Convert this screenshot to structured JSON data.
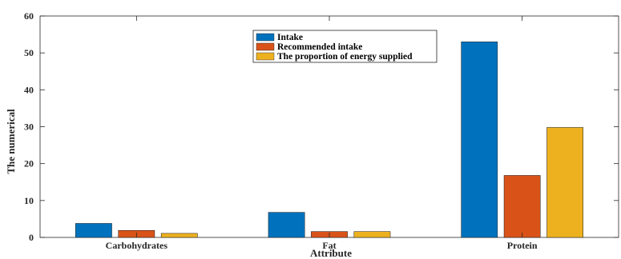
{
  "chart_data": {
    "type": "bar",
    "title": "",
    "xlabel": "Attribute",
    "ylabel": "The numerical",
    "categories": [
      "Carbohydrates",
      "Fat",
      "Protein"
    ],
    "ylim": [
      0,
      60
    ],
    "yticks": [
      0,
      10,
      20,
      30,
      40,
      50,
      60
    ],
    "grid": false,
    "legend_position": "top-center",
    "series": [
      {
        "name": "Intake",
        "color": "#0072BD",
        "values": [
          3.8,
          6.8,
          53
        ]
      },
      {
        "name": "Recommended intake",
        "color": "#D95319",
        "values": [
          1.9,
          1.6,
          16.8
        ]
      },
      {
        "name": "The proportion of energy supplied",
        "color": "#EDB120",
        "values": [
          1.1,
          1.6,
          29.8
        ]
      }
    ]
  }
}
